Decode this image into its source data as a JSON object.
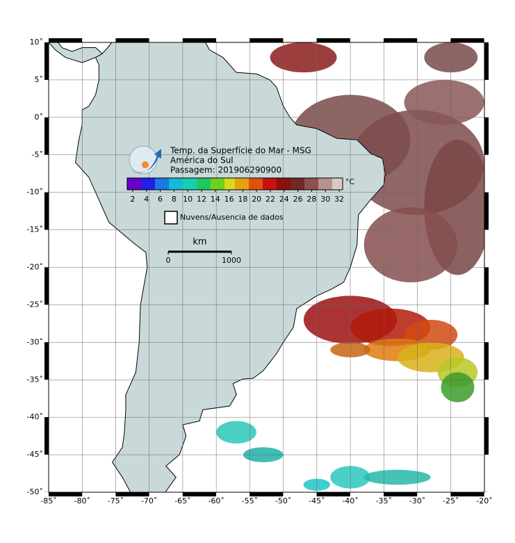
{
  "map": {
    "title": "Temp. da Superfície do Mar - MSG",
    "subtitle": "América do Sul",
    "pass": "Passagem: 201906290900",
    "xlim": [
      -85,
      -20
    ],
    "ylim": [
      -50,
      10
    ],
    "xticks": [
      {
        "value": -85,
        "label": "-85˚"
      },
      {
        "value": -80,
        "label": "-80˚"
      },
      {
        "value": -75,
        "label": "-75˚"
      },
      {
        "value": -70,
        "label": "-70˚"
      },
      {
        "value": -65,
        "label": "-65˚"
      },
      {
        "value": -60,
        "label": "-60˚"
      },
      {
        "value": -55,
        "label": "-55˚"
      },
      {
        "value": -50,
        "label": "-50˚"
      },
      {
        "value": -45,
        "label": "-45˚"
      },
      {
        "value": -40,
        "label": "-40˚"
      },
      {
        "value": -35,
        "label": "-35˚"
      },
      {
        "value": -30,
        "label": "-30˚"
      },
      {
        "value": -25,
        "label": "-25˚"
      },
      {
        "value": -20,
        "label": "-20˚"
      }
    ],
    "yticks": [
      {
        "value": 10,
        "label": "10˚"
      },
      {
        "value": 5,
        "label": "5˚"
      },
      {
        "value": 0,
        "label": "0˚"
      },
      {
        "value": -5,
        "label": "-5˚"
      },
      {
        "value": -10,
        "label": "-10˚"
      },
      {
        "value": -15,
        "label": "-15˚"
      },
      {
        "value": -20,
        "label": "-20˚"
      },
      {
        "value": -25,
        "label": "-25˚"
      },
      {
        "value": -30,
        "label": "-30˚"
      },
      {
        "value": -35,
        "label": "-35˚"
      },
      {
        "value": -40,
        "label": "-40˚"
      },
      {
        "value": -45,
        "label": "-45˚"
      },
      {
        "value": -50,
        "label": "-50˚"
      }
    ],
    "colorbar": {
      "unit": "°C",
      "range": [
        1.2,
        32.5
      ],
      "ticks": [
        2,
        4,
        6,
        8,
        10,
        12,
        14,
        16,
        18,
        20,
        22,
        24,
        26,
        28,
        30,
        32
      ]
    },
    "legend": "Nuvens/Ausencia de dados",
    "scale": {
      "unit": "km",
      "ticks": [
        0,
        1000
      ]
    }
  }
}
